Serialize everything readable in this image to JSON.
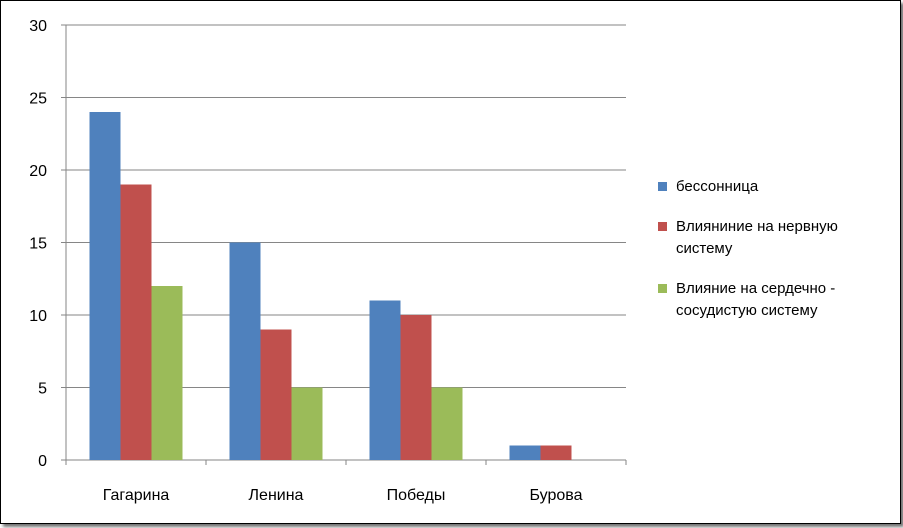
{
  "chart_data": {
    "type": "bar",
    "title": "",
    "xlabel": "",
    "ylabel": "",
    "ylim": [
      0,
      30
    ],
    "yticks": [
      0,
      5,
      10,
      15,
      20,
      25,
      30
    ],
    "grid": true,
    "legend_position": "right",
    "categories": [
      "Гагарина",
      "Ленина",
      "Победы",
      "Бурова"
    ],
    "series": [
      {
        "name": "бессонница",
        "color": "#4f81bd",
        "values": [
          24,
          15,
          11,
          1
        ]
      },
      {
        "name": "Влияниние на нервную систему",
        "color": "#c0504d",
        "values": [
          19,
          9,
          10,
          1
        ]
      },
      {
        "name": "Влияние на сердечно - сосудистую систему",
        "color": "#9bbb59",
        "values": [
          12,
          5,
          5,
          0
        ]
      }
    ]
  }
}
